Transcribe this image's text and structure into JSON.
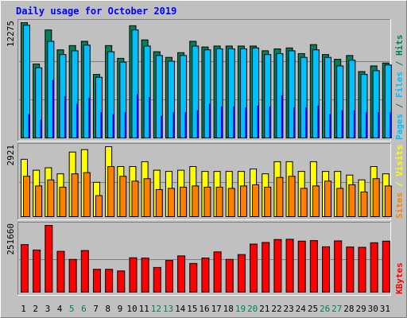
{
  "chart_data": {
    "type": "bar",
    "title": "Daily usage for October 2019",
    "categories": [
      "1",
      "2",
      "3",
      "4",
      "5",
      "6",
      "7",
      "8",
      "9",
      "10",
      "11",
      "12",
      "13",
      "14",
      "15",
      "16",
      "17",
      "18",
      "19",
      "20",
      "21",
      "22",
      "23",
      "24",
      "25",
      "26",
      "27",
      "28",
      "29",
      "30",
      "31"
    ],
    "weekend_days": [
      "5",
      "6",
      "12",
      "13",
      "19",
      "20",
      "26",
      "27"
    ],
    "panels": [
      {
        "name": "Pages / Files / Hits",
        "max_label": "12275",
        "ylim": [
          0,
          12275
        ],
        "series": [
          {
            "name": "Hits",
            "color": "#00805c",
            "values": [
              12275,
              7900,
              11500,
              9400,
              9850,
              10300,
              6800,
              9850,
              8500,
              11950,
              10450,
              9200,
              8600,
              9100,
              10300,
              9700,
              9800,
              9800,
              9800,
              9800,
              9300,
              9500,
              9600,
              9000,
              9950,
              8900,
              8400,
              8800,
              7100,
              7700,
              8000
            ]
          },
          {
            "name": "Files",
            "color": "#00c0ff",
            "values": [
              12000,
              7500,
              10300,
              8900,
              9300,
              9900,
              6500,
              9200,
              8100,
              11500,
              9800,
              8800,
              8200,
              8800,
              9800,
              9400,
              9500,
              9500,
              9500,
              9600,
              8900,
              9000,
              9300,
              8600,
              9400,
              8600,
              7700,
              8300,
              6800,
              7200,
              7800
            ]
          },
          {
            "name": "Pages",
            "color": "#0000ff",
            "values": [
              2600,
              2000,
              6200,
              4500,
              3700,
              4300,
              2800,
              2600,
              2800,
              4700,
              4400,
              2400,
              2800,
              2800,
              3000,
              3700,
              3400,
              3400,
              3300,
              3500,
              3400,
              4600,
              3300,
              3300,
              3500,
              2600,
              3000,
              3000,
              2800,
              2800,
              2800
            ]
          }
        ],
        "side_legend": [
          {
            "text": "Pages",
            "color": "#00c0ff"
          },
          {
            "text": " / ",
            "color": "#00805c"
          },
          {
            "text": "Files",
            "color": "#00c0ff"
          },
          {
            "text": " / ",
            "color": "#00805c"
          },
          {
            "text": "Hits",
            "color": "#00805c"
          }
        ]
      },
      {
        "name": "Sites / Visits",
        "max_label": "2921",
        "ylim": [
          0,
          2921
        ],
        "series": [
          {
            "name": "Visits",
            "color": "#ffff00",
            "values": [
              2400,
              1950,
              2050,
              1800,
              2700,
              2800,
              1450,
              2921,
              2100,
              2100,
              2300,
              1950,
              1900,
              1950,
              2100,
              1900,
              1900,
              1900,
              1900,
              2000,
              1800,
              2300,
              2300,
              1900,
              2300,
              1900,
              1900,
              1750,
              1550,
              2100,
              1800
            ]
          },
          {
            "name": "Sites",
            "color": "#ff8000",
            "values": [
              1700,
              1300,
              1550,
              1250,
              1800,
              1850,
              900,
              2100,
              1700,
              1500,
              1600,
              1150,
              1200,
              1250,
              1300,
              1250,
              1250,
              1200,
              1300,
              1350,
              1250,
              1650,
              1700,
              1200,
              1300,
              1500,
              1200,
              1350,
              1050,
              1600,
              1300
            ]
          }
        ],
        "side_legend": [
          {
            "text": "Sites",
            "color": "#ff8000"
          },
          {
            "text": " / ",
            "color": "#ffff00"
          },
          {
            "text": "Visits",
            "color": "#ffff00"
          }
        ]
      },
      {
        "name": "KBytes",
        "max_label": "251660",
        "ylim": [
          0,
          251660
        ],
        "series": [
          {
            "name": "KBytes",
            "color": "#ff0000",
            "values": [
              180000,
              160000,
              251660,
              155000,
              125000,
              158000,
              88000,
              88000,
              82000,
              131000,
              130000,
              95000,
              121000,
              138000,
              110000,
              130000,
              153000,
              125000,
              143000,
              182000,
              188000,
              199000,
              200000,
              193000,
              195000,
              172000,
              194000,
              171000,
              170000,
              187000,
              193000
            ]
          }
        ],
        "side_legend": [
          {
            "text": "KBytes",
            "color": "#ff0000"
          }
        ]
      }
    ],
    "colors": {
      "background": "#c0c0c0",
      "plot_background": "#c0c0c0",
      "title_color": "#0000ff",
      "weekday_label": "#000000",
      "weekend_label": "#00805c",
      "grid": "#808080"
    }
  }
}
